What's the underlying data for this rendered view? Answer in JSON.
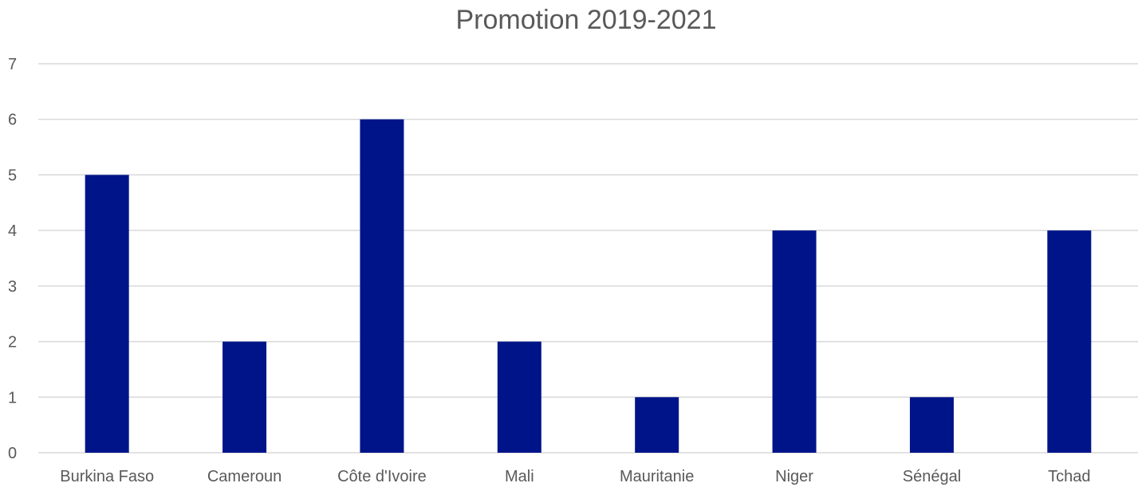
{
  "chart_data": {
    "type": "bar",
    "title": "Promotion 2019-2021",
    "xlabel": "",
    "ylabel": "",
    "categories": [
      "Burkina Faso",
      "Cameroun",
      "Côte d'Ivoire",
      "Mali",
      "Mauritanie",
      "Niger",
      "Sénégal",
      "Tchad"
    ],
    "values": [
      5,
      2,
      6,
      2,
      1,
      4,
      1,
      4
    ],
    "ylim": [
      0,
      7
    ],
    "yticks": [
      0,
      1,
      2,
      3,
      4,
      5,
      6,
      7
    ],
    "grid": true,
    "legend": "none",
    "bar_color": "#001489"
  }
}
